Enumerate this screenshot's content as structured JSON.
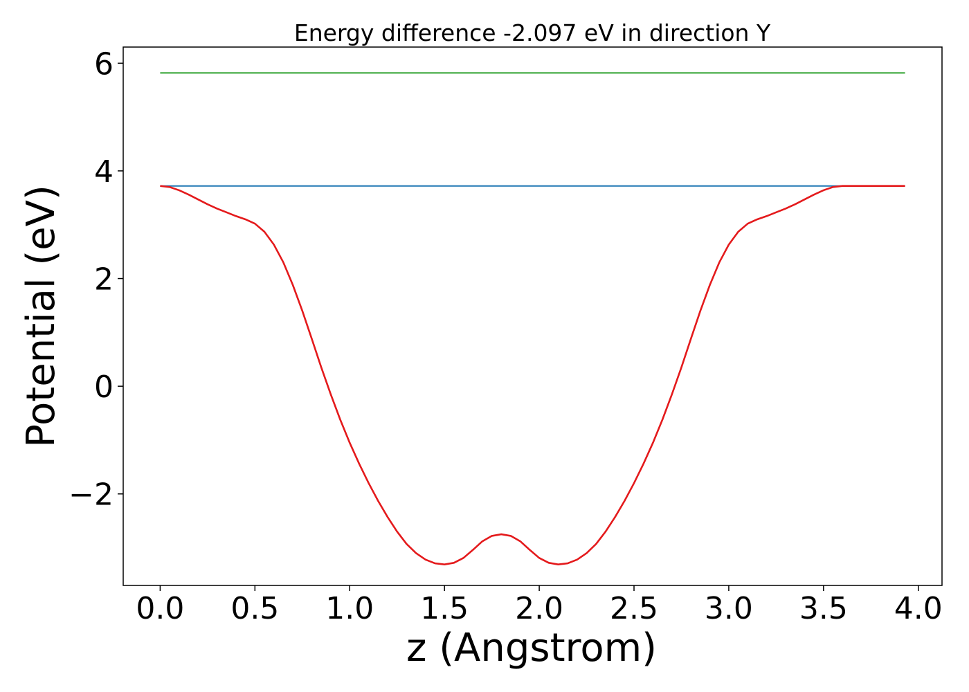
{
  "chart_data": {
    "type": "line",
    "title": "Energy difference -2.097 eV in direction Y",
    "xlabel": "z (Angstrom)",
    "ylabel": "Potential (eV)",
    "xlim": [
      -0.195,
      4.125
    ],
    "ylim": [
      -3.7,
      6.3
    ],
    "xticks": [
      "0.0",
      "0.5",
      "1.0",
      "1.5",
      "2.0",
      "2.5",
      "3.0",
      "3.5",
      "4.0"
    ],
    "yticks": [
      "−2",
      "0",
      "2",
      "4",
      "6"
    ],
    "grid": false,
    "legend": "none",
    "series": [
      {
        "color": "#2ca02c",
        "x": [
          0.0,
          3.93
        ],
        "y": [
          5.82,
          5.82
        ]
      },
      {
        "color": "#1f77b4",
        "x": [
          0.0,
          3.93
        ],
        "y": [
          3.72,
          3.72
        ]
      },
      {
        "color": "#e41a1c",
        "x": [
          0.0,
          0.05,
          0.1,
          0.15,
          0.2,
          0.25,
          0.3,
          0.35,
          0.4,
          0.45,
          0.5,
          0.55,
          0.6,
          0.65,
          0.7,
          0.75,
          0.8,
          0.85,
          0.9,
          0.95,
          1.0,
          1.05,
          1.1,
          1.15,
          1.2,
          1.25,
          1.3,
          1.35,
          1.4,
          1.45,
          1.5,
          1.55,
          1.6,
          1.65,
          1.7,
          1.75,
          1.8,
          1.85,
          1.9,
          1.95,
          2.0,
          2.05,
          2.1,
          2.15,
          2.2,
          2.25,
          2.3,
          2.35,
          2.4,
          2.45,
          2.5,
          2.55,
          2.6,
          2.65,
          2.7,
          2.75,
          2.8,
          2.85,
          2.9,
          2.95,
          3.0,
          3.05,
          3.1,
          3.15,
          3.2,
          3.25,
          3.3,
          3.35,
          3.4,
          3.45,
          3.5,
          3.55,
          3.6,
          3.65,
          3.7,
          3.75,
          3.8,
          3.85,
          3.9,
          3.93
        ],
        "y": [
          3.72,
          3.7,
          3.64,
          3.56,
          3.47,
          3.38,
          3.3,
          3.23,
          3.16,
          3.1,
          3.02,
          2.87,
          2.63,
          2.3,
          1.88,
          1.4,
          0.88,
          0.35,
          -0.15,
          -0.62,
          -1.05,
          -1.44,
          -1.8,
          -2.13,
          -2.43,
          -2.7,
          -2.93,
          -3.1,
          -3.22,
          -3.29,
          -3.31,
          -3.28,
          -3.19,
          -3.04,
          -2.88,
          -2.78,
          -2.75,
          -2.78,
          -2.88,
          -3.04,
          -3.19,
          -3.28,
          -3.31,
          -3.29,
          -3.22,
          -3.1,
          -2.93,
          -2.7,
          -2.43,
          -2.13,
          -1.8,
          -1.44,
          -1.05,
          -0.62,
          -0.15,
          0.35,
          0.88,
          1.4,
          1.88,
          2.3,
          2.63,
          2.87,
          3.02,
          3.1,
          3.16,
          3.23,
          3.3,
          3.38,
          3.47,
          3.56,
          3.64,
          3.7,
          3.72,
          3.72,
          3.72,
          3.72,
          3.72,
          3.72,
          3.72,
          3.72
        ],
        "x_override": [
          0.0,
          0.05,
          0.1,
          0.15,
          0.2,
          0.25,
          0.3,
          0.35,
          0.4,
          0.45,
          0.5,
          0.55,
          0.6,
          0.65,
          0.7,
          0.75,
          0.8,
          0.85,
          0.9,
          0.95,
          1.0,
          1.05,
          1.1,
          1.15,
          1.2,
          1.25,
          1.3,
          1.35,
          1.4,
          1.45,
          1.5,
          1.55,
          1.6,
          1.65,
          1.7,
          1.75,
          1.8,
          1.85,
          1.9,
          1.95,
          2.0,
          2.05,
          2.1,
          2.15,
          2.2,
          2.25,
          2.3,
          2.35,
          2.4,
          2.45,
          2.5,
          2.55,
          2.6,
          2.65,
          2.7,
          2.75,
          2.8,
          2.85,
          2.9,
          2.95,
          3.0,
          3.05,
          3.1,
          3.15,
          3.2,
          3.25,
          3.3,
          3.35,
          3.4,
          3.45,
          3.5,
          3.55,
          3.6,
          3.65,
          3.7,
          3.75,
          3.8,
          3.85,
          3.9,
          3.93
        ]
      }
    ]
  }
}
